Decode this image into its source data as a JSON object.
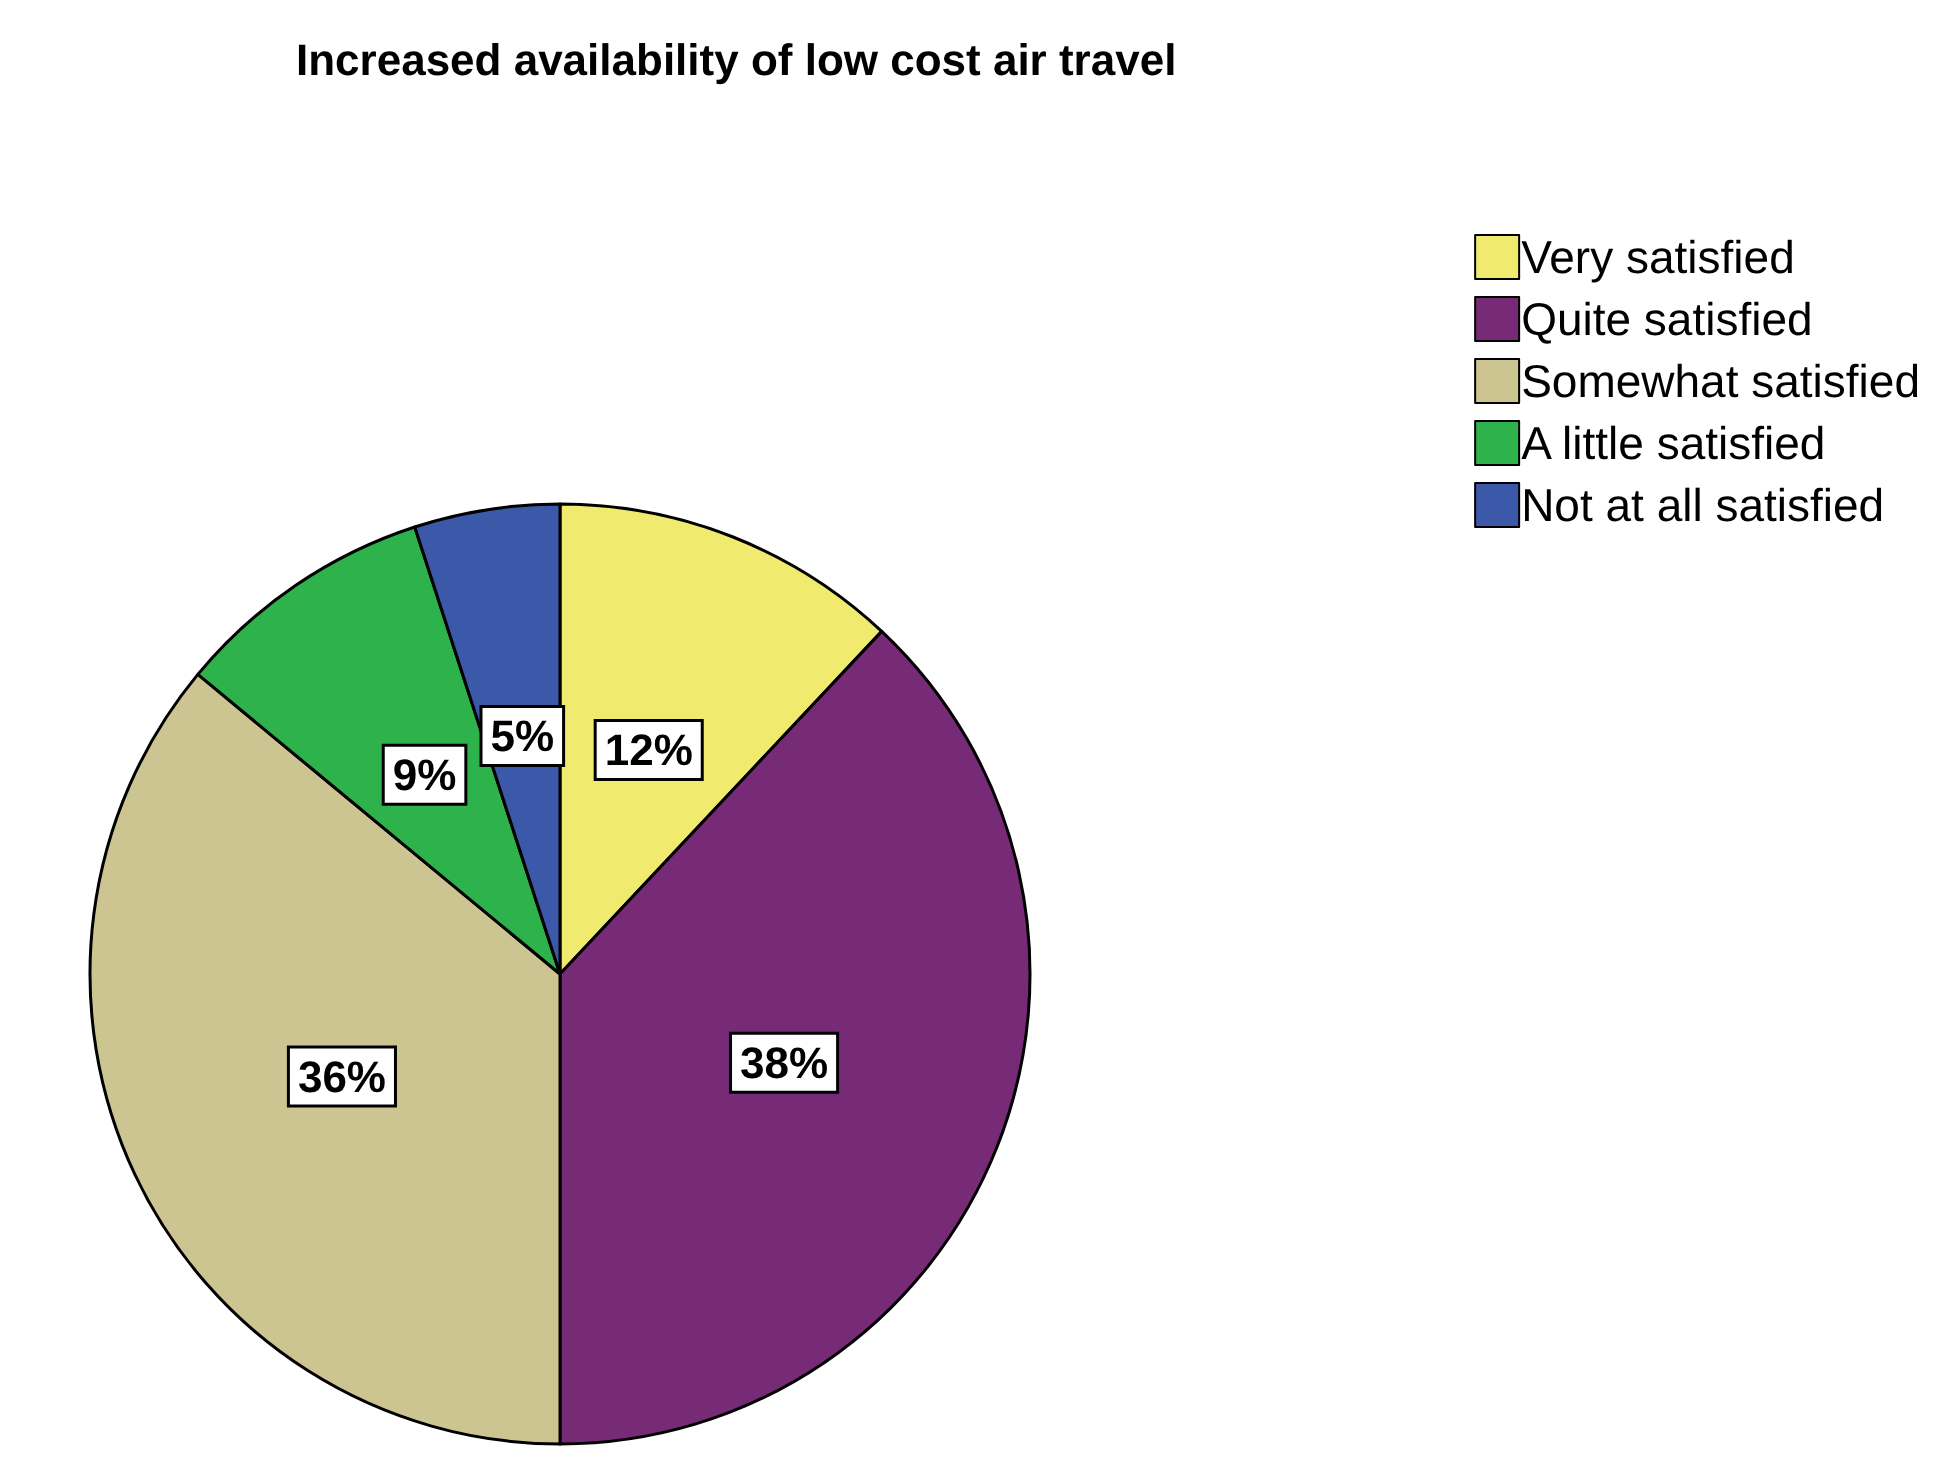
{
  "chart_data": {
    "type": "pie",
    "title": "Increased availability of low cost air travel",
    "categories": [
      "Very satisfied",
      "Quite satisfied",
      "Somewhat satisfied",
      "A little satisfied",
      "Not at all satisfied"
    ],
    "values": [
      12,
      38,
      36,
      9,
      5
    ],
    "colors": [
      "#f0ea6e",
      "#772a75",
      "#ccc592",
      "#2eb24b",
      "#3c58a8"
    ],
    "value_labels": [
      "12%",
      "38%",
      "36%",
      "9%",
      "5%"
    ],
    "legend": "top right"
  }
}
